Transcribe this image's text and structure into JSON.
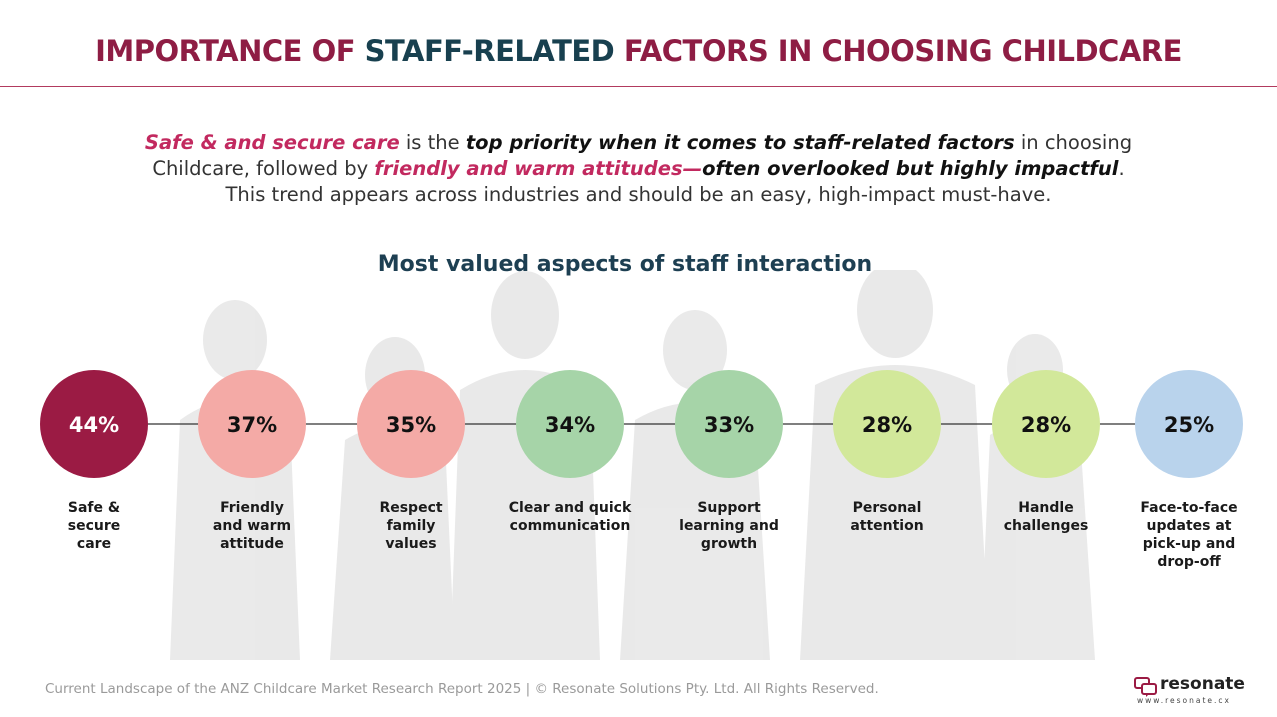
{
  "title": {
    "part1": "IMPORTANCE OF ",
    "part2": "STAFF-RELATED",
    "part3": " FACTORS IN CHOOSING CHILDCARE"
  },
  "intro": {
    "s1": "Safe & and secure care",
    "s2": " is the ",
    "s3": "top priority when it comes to staff-related factors",
    "s4": " in choosing Childcare, followed by ",
    "s5": "friendly and warm attitudes",
    "s6": "—",
    "s7": "often overlooked but highly impactful",
    "s8": ". This trend appears across industries and should be an easy, high-impact must-have."
  },
  "subtitle": "Most valued aspects of staff interaction",
  "chart_data": {
    "type": "bar",
    "title": "Most valued aspects of staff interaction",
    "categories": [
      "Safe & secure care",
      "Friendly and warm attitude",
      "Respect family values",
      "Clear and quick communication",
      "Support learning and growth",
      "Personal attention",
      "Handle challenges",
      "Face-to-face updates at pick-up and drop-off"
    ],
    "category_lines": [
      [
        "Safe &",
        "secure",
        "care"
      ],
      [
        "Friendly",
        "and warm",
        "attitude"
      ],
      [
        "Respect",
        "family",
        "values"
      ],
      [
        "Clear and quick",
        "communication"
      ],
      [
        "Support",
        "learning and",
        "growth"
      ],
      [
        "Personal",
        "attention"
      ],
      [
        "Handle",
        "challenges"
      ],
      [
        "Face-to-face",
        "updates at",
        "pick-up and",
        "drop-off"
      ]
    ],
    "values": [
      44,
      37,
      35,
      34,
      33,
      28,
      28,
      25
    ],
    "value_labels": [
      "44%",
      "37%",
      "35%",
      "34%",
      "33%",
      "28%",
      "28%",
      "25%"
    ],
    "unit": "%",
    "colors": [
      "#9b1b44",
      "#f4aaa6",
      "#f4aaa6",
      "#a6d4a8",
      "#a6d4a8",
      "#d2e89a",
      "#d2e89a",
      "#b9d3ec"
    ],
    "label_colors": [
      "#ffffff",
      "#111111",
      "#111111",
      "#111111",
      "#111111",
      "#111111",
      "#111111",
      "#111111"
    ],
    "connector_color": "#333333"
  },
  "footer": "Current Landscape of the ANZ Childcare Market Research Report 2025 | © Resonate Solutions Pty. Ltd. All Rights Reserved.",
  "logo": {
    "name": "resonate",
    "url": "www.resonate.cx",
    "icon": "speech-bubbles-icon",
    "color": "#9b1b44"
  }
}
